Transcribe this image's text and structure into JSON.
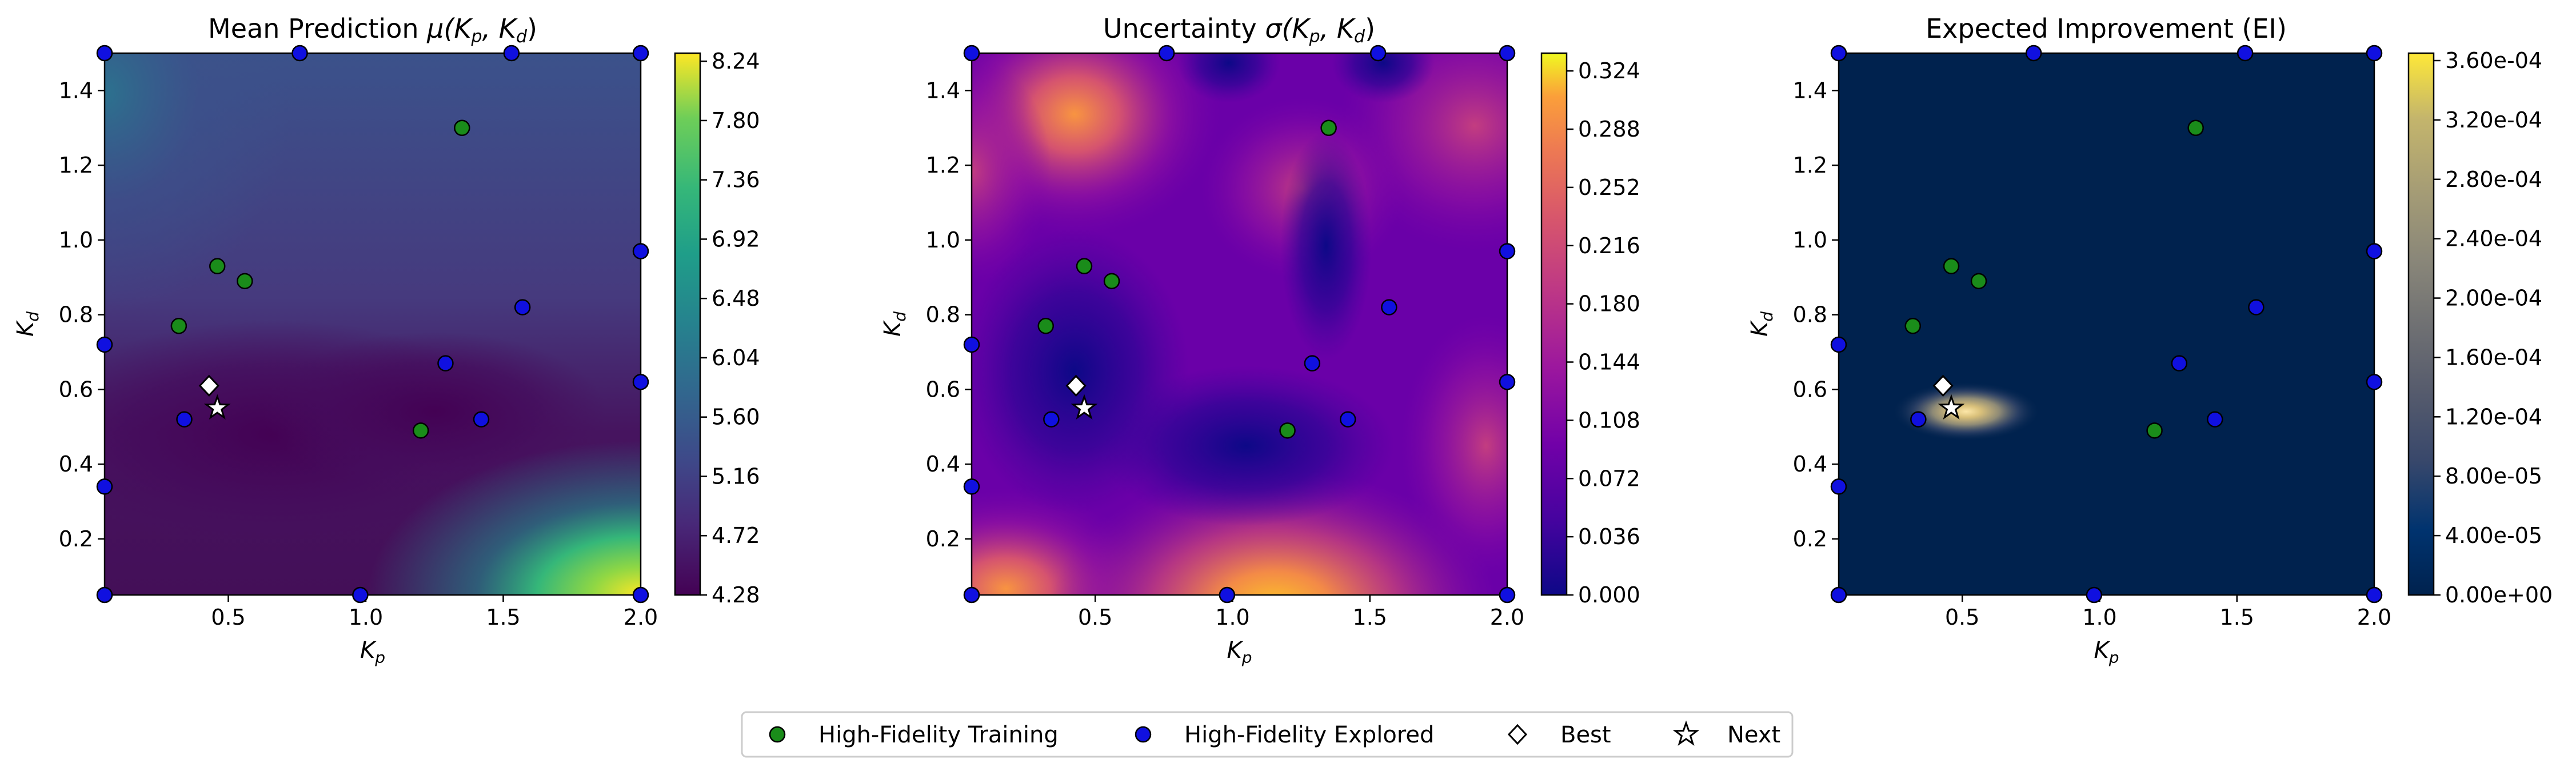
{
  "chart_data": [
    {
      "type": "heatmap",
      "title_text": "Mean Prediction ",
      "title_math": "μ(K",
      "title_math_sub": "p",
      "title_math_mid": ", K",
      "title_math_sub2": "d",
      "title_math_end": ")",
      "xlabel": "K",
      "xlabel_sub": "p",
      "ylabel": "K",
      "ylabel_sub": "d",
      "xlim": [
        0.05,
        2.0
      ],
      "ylim": [
        0.05,
        1.5
      ],
      "xticks": [
        "0.5",
        "1.0",
        "1.5",
        "2.0"
      ],
      "yticks": [
        "0.2",
        "0.4",
        "0.6",
        "0.8",
        "1.0",
        "1.2",
        "1.4"
      ],
      "colormap": "viridis",
      "cbar_range": [
        4.28,
        8.3
      ],
      "cbar_ticks": [
        "4.28",
        "4.72",
        "5.16",
        "5.60",
        "6.04",
        "6.48",
        "6.92",
        "7.36",
        "7.80",
        "8.24"
      ]
    },
    {
      "type": "heatmap",
      "title_text": "Uncertainty ",
      "title_math": "σ(K",
      "title_math_sub": "p",
      "title_math_mid": ", K",
      "title_math_sub2": "d",
      "title_math_end": ")",
      "xlabel": "K",
      "xlabel_sub": "p",
      "ylabel": "K",
      "ylabel_sub": "d",
      "xlim": [
        0.05,
        2.0
      ],
      "ylim": [
        0.05,
        1.5
      ],
      "xticks": [
        "0.5",
        "1.0",
        "1.5",
        "2.0"
      ],
      "yticks": [
        "0.2",
        "0.4",
        "0.6",
        "0.8",
        "1.0",
        "1.2",
        "1.4"
      ],
      "colormap": "plasma",
      "cbar_range": [
        0.0,
        0.335
      ],
      "cbar_ticks": [
        "0.000",
        "0.036",
        "0.072",
        "0.108",
        "0.144",
        "0.180",
        "0.216",
        "0.252",
        "0.288",
        "0.324"
      ]
    },
    {
      "type": "heatmap",
      "title_text": "Expected Improvement (EI)",
      "title_math": "",
      "title_math_sub": "",
      "title_math_mid": "",
      "title_math_sub2": "",
      "title_math_end": "",
      "xlabel": "K",
      "xlabel_sub": "p",
      "ylabel": "K",
      "ylabel_sub": "d",
      "xlim": [
        0.05,
        2.0
      ],
      "ylim": [
        0.05,
        1.5
      ],
      "xticks": [
        "0.5",
        "1.0",
        "1.5",
        "2.0"
      ],
      "yticks": [
        "0.2",
        "0.4",
        "0.6",
        "0.8",
        "1.0",
        "1.2",
        "1.4"
      ],
      "colormap": "cividis",
      "cbar_range": [
        0.0,
        0.000365
      ],
      "cbar_ticks": [
        "0.00e+00",
        "4.00e-05",
        "8.00e-05",
        "1.20e-04",
        "1.60e-04",
        "2.00e-04",
        "2.40e-04",
        "2.80e-04",
        "3.20e-04",
        "3.60e-04"
      ]
    }
  ],
  "points": {
    "training": [
      [
        0.32,
        0.77
      ],
      [
        0.46,
        0.93
      ],
      [
        0.56,
        0.89
      ],
      [
        1.2,
        0.49
      ],
      [
        1.35,
        1.3
      ]
    ],
    "explored": [
      [
        0.05,
        0.72
      ],
      [
        0.05,
        0.34
      ],
      [
        0.05,
        0.05
      ],
      [
        0.34,
        0.52
      ],
      [
        0.05,
        1.5
      ],
      [
        0.76,
        1.5
      ],
      [
        0.98,
        0.05
      ],
      [
        1.29,
        0.67
      ],
      [
        1.42,
        0.52
      ],
      [
        1.53,
        1.5
      ],
      [
        1.57,
        0.82
      ],
      [
        2.0,
        0.97
      ],
      [
        2.0,
        0.62
      ],
      [
        2.0,
        0.05
      ],
      [
        2.0,
        1.5
      ]
    ],
    "best": [
      0.43,
      0.61
    ],
    "next": [
      0.46,
      0.55
    ]
  },
  "legend": {
    "training_label": "High-Fidelity Training",
    "explored_label": "High-Fidelity Explored",
    "best_label": "Best",
    "next_label": "Next"
  },
  "colors": {
    "training": "#1a8c1a",
    "explored": "#1010e0",
    "edge": "#000000",
    "best_fill": "#ffffff",
    "next_fill": "#ffffff"
  }
}
